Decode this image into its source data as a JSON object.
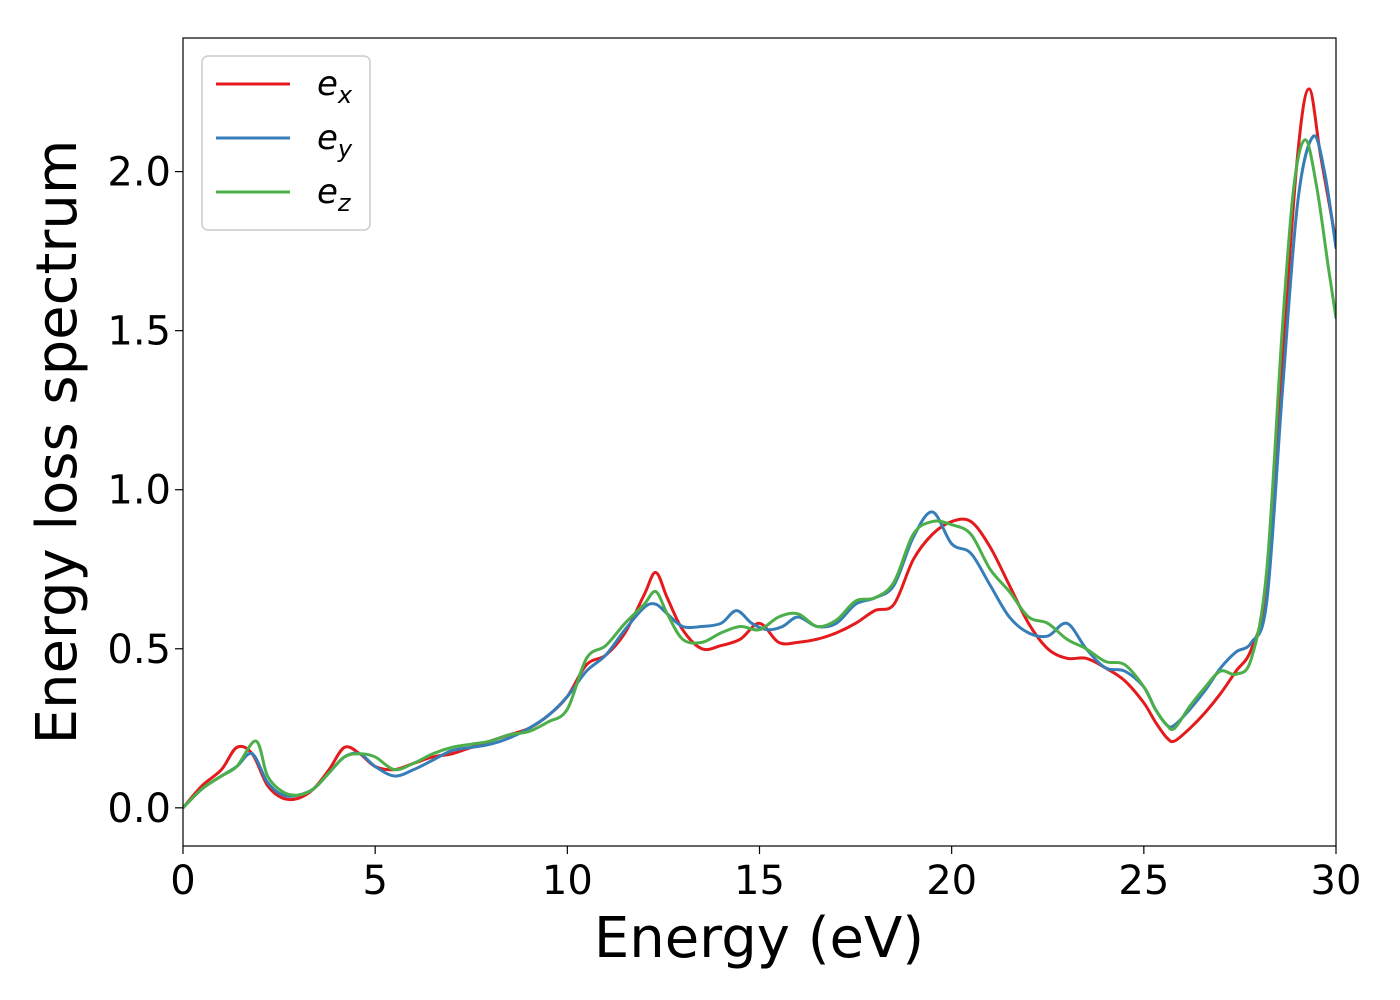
{
  "chart_data": {
    "type": "line",
    "title": "",
    "xlabel": "Energy (eV)",
    "ylabel": "Energy loss spectrum",
    "xlim": [
      0,
      30
    ],
    "ylim": [
      -0.12,
      2.42
    ],
    "xticks": [
      0,
      5,
      10,
      15,
      20,
      25,
      30
    ],
    "xtick_labels": [
      "0",
      "5",
      "10",
      "15",
      "20",
      "25",
      "30"
    ],
    "yticks": [
      0.0,
      0.5,
      1.0,
      1.5,
      2.0
    ],
    "ytick_labels": [
      "0.0",
      "0.5",
      "1.0",
      "1.5",
      "2.0"
    ],
    "grid": false,
    "legend_position": "top-left",
    "series": [
      {
        "name": "e_x",
        "legend_base": "e",
        "legend_sub": "x",
        "color": "#e41a1c",
        "x": [
          0,
          0.5,
          1.0,
          1.4,
          1.8,
          2.2,
          2.6,
          3.0,
          3.4,
          3.8,
          4.2,
          4.6,
          5.0,
          5.5,
          6.0,
          6.5,
          7.0,
          7.5,
          8.0,
          8.5,
          9.0,
          9.5,
          10.0,
          10.5,
          11.0,
          11.5,
          12.0,
          12.3,
          12.6,
          13.0,
          13.5,
          14.0,
          14.5,
          15.0,
          15.5,
          16.0,
          16.5,
          17.0,
          17.5,
          18.0,
          18.5,
          19.0,
          19.5,
          20.0,
          20.5,
          21.0,
          21.5,
          22.0,
          22.5,
          23.0,
          23.5,
          24.0,
          24.5,
          25.0,
          25.3,
          25.6,
          25.8,
          26.2,
          26.6,
          27.0,
          27.4,
          27.8,
          28.2,
          28.6,
          29.0,
          29.3,
          29.6,
          30.0
        ],
        "y": [
          0.0,
          0.07,
          0.12,
          0.19,
          0.17,
          0.07,
          0.03,
          0.03,
          0.06,
          0.12,
          0.19,
          0.17,
          0.13,
          0.12,
          0.14,
          0.16,
          0.17,
          0.19,
          0.21,
          0.23,
          0.25,
          0.29,
          0.35,
          0.45,
          0.48,
          0.55,
          0.67,
          0.74,
          0.66,
          0.56,
          0.5,
          0.51,
          0.53,
          0.58,
          0.52,
          0.52,
          0.53,
          0.55,
          0.58,
          0.62,
          0.64,
          0.78,
          0.86,
          0.9,
          0.9,
          0.82,
          0.7,
          0.58,
          0.5,
          0.47,
          0.47,
          0.44,
          0.4,
          0.33,
          0.27,
          0.22,
          0.21,
          0.25,
          0.3,
          0.36,
          0.43,
          0.5,
          0.7,
          1.4,
          2.05,
          2.26,
          2.05,
          1.78
        ]
      },
      {
        "name": "e_y",
        "legend_base": "e",
        "legend_sub": "y",
        "color": "#377eb8",
        "x": [
          0,
          0.5,
          1.0,
          1.4,
          1.8,
          2.2,
          2.6,
          3.0,
          3.4,
          3.8,
          4.2,
          4.6,
          5.0,
          5.5,
          6.0,
          6.5,
          7.0,
          7.5,
          8.0,
          8.5,
          9.0,
          9.5,
          10.0,
          10.5,
          11.0,
          11.5,
          12.0,
          12.3,
          12.6,
          13.0,
          13.5,
          14.0,
          14.4,
          14.8,
          15.2,
          15.6,
          16.0,
          16.5,
          17.0,
          17.5,
          18.0,
          18.5,
          19.0,
          19.5,
          20.0,
          20.5,
          21.0,
          21.5,
          22.0,
          22.5,
          23.0,
          23.5,
          24.0,
          24.5,
          25.0,
          25.3,
          25.6,
          25.8,
          26.2,
          26.6,
          27.0,
          27.4,
          27.8,
          28.2,
          28.6,
          29.0,
          29.4,
          29.7,
          30.0
        ],
        "y": [
          0.0,
          0.06,
          0.1,
          0.13,
          0.17,
          0.08,
          0.04,
          0.04,
          0.06,
          0.11,
          0.16,
          0.17,
          0.13,
          0.1,
          0.12,
          0.15,
          0.18,
          0.19,
          0.2,
          0.22,
          0.25,
          0.29,
          0.35,
          0.43,
          0.48,
          0.56,
          0.63,
          0.64,
          0.61,
          0.57,
          0.57,
          0.58,
          0.62,
          0.58,
          0.56,
          0.57,
          0.6,
          0.57,
          0.58,
          0.64,
          0.66,
          0.7,
          0.85,
          0.93,
          0.83,
          0.8,
          0.7,
          0.6,
          0.55,
          0.54,
          0.58,
          0.5,
          0.44,
          0.43,
          0.38,
          0.31,
          0.26,
          0.26,
          0.31,
          0.37,
          0.44,
          0.49,
          0.52,
          0.65,
          1.3,
          1.9,
          2.11,
          2.0,
          1.76
        ]
      },
      {
        "name": "e_z",
        "legend_base": "e",
        "legend_sub": "z",
        "color": "#4daf4a",
        "x": [
          0,
          0.5,
          1.0,
          1.4,
          1.9,
          2.2,
          2.6,
          3.0,
          3.4,
          3.8,
          4.2,
          4.6,
          5.0,
          5.5,
          6.0,
          6.5,
          7.0,
          7.5,
          8.0,
          8.5,
          9.0,
          9.5,
          10.0,
          10.5,
          11.0,
          11.5,
          12.0,
          12.3,
          12.6,
          13.0,
          13.5,
          14.0,
          14.5,
          15.0,
          15.5,
          16.0,
          16.5,
          17.0,
          17.5,
          18.0,
          18.5,
          19.0,
          19.5,
          20.0,
          20.5,
          21.0,
          21.5,
          22.0,
          22.5,
          23.0,
          23.5,
          24.0,
          24.5,
          25.0,
          25.3,
          25.6,
          25.8,
          26.2,
          26.6,
          27.0,
          27.4,
          27.8,
          28.2,
          28.6,
          28.9,
          29.2,
          29.5,
          29.8,
          30.0
        ],
        "y": [
          0.0,
          0.06,
          0.1,
          0.13,
          0.21,
          0.1,
          0.05,
          0.04,
          0.06,
          0.11,
          0.16,
          0.17,
          0.16,
          0.12,
          0.14,
          0.17,
          0.19,
          0.2,
          0.21,
          0.23,
          0.24,
          0.27,
          0.31,
          0.47,
          0.51,
          0.58,
          0.64,
          0.68,
          0.61,
          0.53,
          0.52,
          0.55,
          0.57,
          0.56,
          0.6,
          0.61,
          0.57,
          0.59,
          0.65,
          0.66,
          0.71,
          0.86,
          0.9,
          0.89,
          0.86,
          0.75,
          0.68,
          0.6,
          0.58,
          0.53,
          0.5,
          0.46,
          0.45,
          0.38,
          0.31,
          0.26,
          0.25,
          0.32,
          0.38,
          0.43,
          0.42,
          0.47,
          0.75,
          1.5,
          1.95,
          2.1,
          1.95,
          1.7,
          1.54
        ]
      }
    ]
  }
}
